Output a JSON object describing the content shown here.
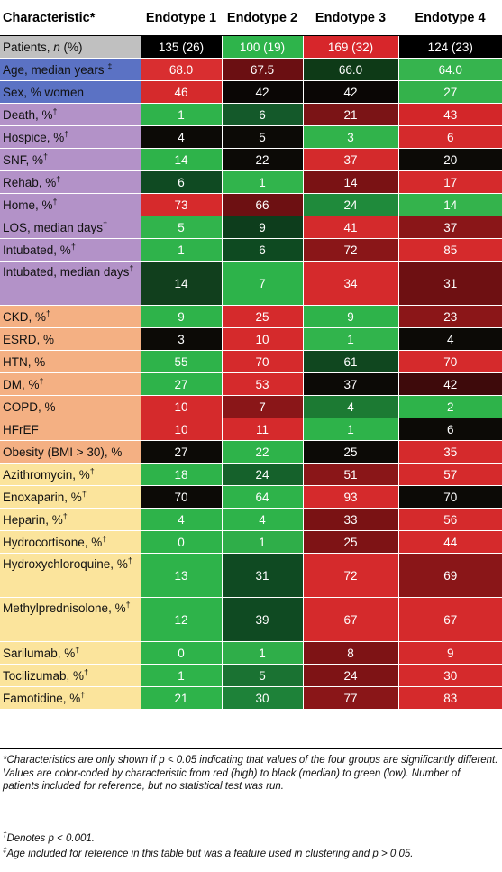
{
  "columns": [
    "Characteristic*",
    "Endotype 1",
    "Endotype 2",
    "Endotype 3",
    "Endotype 4"
  ],
  "groups": {
    "demographics": "#5b72c4",
    "outcomes": "#b392c8",
    "comorbidities": "#f4b083",
    "medications": "#fbe49c",
    "patients": "#c0c0c0"
  },
  "rows": [
    {
      "label": "Patients, ",
      "label_em": "n",
      "label_tail": " (%)",
      "mark": "",
      "group": "patients",
      "values": [
        "135 (26)",
        "100 (19)",
        "169 (32)",
        "124 (23)"
      ],
      "colors": [
        "#000000",
        "#2eb44b",
        "#d7262b",
        "#000000"
      ]
    },
    {
      "label": "Age, median years ",
      "mark": "‡",
      "group": "demographics",
      "values": [
        "68.0",
        "67.5",
        "66.0",
        "64.0"
      ],
      "colors": [
        "#d92e30",
        "#6b0f12",
        "#0e3a17",
        "#36b44e"
      ]
    },
    {
      "label": "Sex, % women",
      "mark": "",
      "group": "demographics",
      "values": [
        "46",
        "42",
        "42",
        "27"
      ],
      "colors": [
        "#d52a2c",
        "#0a0605",
        "#0a0605",
        "#34b24b"
      ]
    },
    {
      "label": "Death, %",
      "mark": "†",
      "group": "outcomes",
      "values": [
        "1",
        "6",
        "21",
        "43"
      ],
      "colors": [
        "#2fb34b",
        "#14592a",
        "#7b1416",
        "#d32629"
      ]
    },
    {
      "label": "Hospice, %",
      "mark": "†",
      "group": "outcomes",
      "values": [
        "4",
        "5",
        "3",
        "6"
      ],
      "colors": [
        "#0c0a06",
        "#0c0a06",
        "#31b34b",
        "#d52a2c"
      ]
    },
    {
      "label": "SNF, %",
      "mark": "†",
      "group": "outcomes",
      "values": [
        "14",
        "22",
        "37",
        "20"
      ],
      "colors": [
        "#2eb34a",
        "#0c0a06",
        "#d42a2c",
        "#0c0a06"
      ]
    },
    {
      "label": "Rehab, %",
      "mark": "†",
      "group": "outcomes",
      "values": [
        "6",
        "1",
        "14",
        "17"
      ],
      "colors": [
        "#0f4a22",
        "#31b44c",
        "#7a1214",
        "#d52a2c"
      ]
    },
    {
      "label": "Home, %",
      "mark": "†",
      "group": "outcomes",
      "values": [
        "73",
        "66",
        "24",
        "14"
      ],
      "colors": [
        "#d62a2c",
        "#6d1012",
        "#1f8a3b",
        "#34b34c"
      ]
    },
    {
      "label": "LOS, median days",
      "mark": "†",
      "group": "outcomes",
      "values": [
        "5",
        "9",
        "41",
        "37"
      ],
      "colors": [
        "#31b44c",
        "#0d3d1c",
        "#d42a2c",
        "#8a1618"
      ]
    },
    {
      "label": "Intubated, %",
      "mark": "†",
      "group": "outcomes",
      "values": [
        "1",
        "6",
        "72",
        "85"
      ],
      "colors": [
        "#2fb34b",
        "#0e4a21",
        "#8a1618",
        "#d52a2c"
      ]
    },
    {
      "label": "Intubated, median days",
      "mark": "†",
      "group": "outcomes",
      "tall": true,
      "values": [
        "14",
        "7",
        "34",
        "31"
      ],
      "colors": [
        "#113f1d",
        "#2db34a",
        "#d52a2c",
        "#6e1012"
      ]
    },
    {
      "label": "CKD, %",
      "mark": "†",
      "group": "comorbidities",
      "values": [
        "9",
        "25",
        "9",
        "23"
      ],
      "colors": [
        "#2eb34a",
        "#d52a2c",
        "#2eb34a",
        "#8b1618"
      ]
    },
    {
      "label": "ESRD, %",
      "mark": "",
      "group": "comorbidities",
      "values": [
        "3",
        "10",
        "1",
        "4"
      ],
      "colors": [
        "#0c0a06",
        "#d52a2c",
        "#31b44c",
        "#0c0a06"
      ]
    },
    {
      "label": "HTN, %",
      "mark": "",
      "group": "comorbidities",
      "values": [
        "55",
        "70",
        "61",
        "70"
      ],
      "colors": [
        "#2eb34a",
        "#d52a2c",
        "#10471f",
        "#d52a2c"
      ]
    },
    {
      "label": "DM, %",
      "mark": "†",
      "group": "comorbidities",
      "values": [
        "27",
        "53",
        "37",
        "42"
      ],
      "colors": [
        "#2eb34a",
        "#d52a2c",
        "#0c0a06",
        "#3e0a0b"
      ]
    },
    {
      "label": "COPD, %",
      "mark": "",
      "group": "comorbidities",
      "values": [
        "10",
        "7",
        "4",
        "2"
      ],
      "colors": [
        "#d52a2c",
        "#8a1618",
        "#1c7a33",
        "#2eb34a"
      ]
    },
    {
      "label": "HFrEF",
      "mark": "",
      "group": "comorbidities",
      "values": [
        "10",
        "11",
        "1",
        "6"
      ],
      "colors": [
        "#d52a2c",
        "#d52a2c",
        "#2eb34a",
        "#0c0a06"
      ]
    },
    {
      "label": "Obesity (BMI > 30), %",
      "mark": "",
      "group": "comorbidities",
      "values": [
        "27",
        "22",
        "25",
        "35"
      ],
      "colors": [
        "#0c0a06",
        "#2eb34a",
        "#0c0a06",
        "#d52a2c"
      ]
    },
    {
      "label": "Azithromycin, %",
      "mark": "†",
      "group": "medications",
      "values": [
        "18",
        "24",
        "51",
        "57"
      ],
      "colors": [
        "#2eb34a",
        "#15612b",
        "#8a1618",
        "#d52a2c"
      ]
    },
    {
      "label": "Enoxaparin, %",
      "mark": "†",
      "group": "medications",
      "values": [
        "70",
        "64",
        "93",
        "70"
      ],
      "colors": [
        "#0c0a06",
        "#2eb34a",
        "#d52a2c",
        "#0c0a06"
      ]
    },
    {
      "label": "Heparin, %",
      "mark": "†",
      "group": "medications",
      "values": [
        "4",
        "4",
        "33",
        "56"
      ],
      "colors": [
        "#2eb34a",
        "#2eb34a",
        "#7a1214",
        "#d52a2c"
      ]
    },
    {
      "label": "Hydrocortisone, %",
      "mark": "†",
      "group": "medications",
      "values": [
        "0",
        "1",
        "25",
        "44"
      ],
      "colors": [
        "#2eb34a",
        "#2fae49",
        "#7e1315",
        "#d52a2c"
      ]
    },
    {
      "label": "Hydroxychloroquine, %",
      "mark": "†",
      "group": "medications",
      "tall": true,
      "values": [
        "13",
        "31",
        "72",
        "69"
      ],
      "colors": [
        "#2eb34a",
        "#0f4a22",
        "#d52a2c",
        "#8a1618"
      ]
    },
    {
      "label": "Methylprednisolone, %",
      "mark": "†",
      "group": "medications",
      "tall": true,
      "values": [
        "12",
        "39",
        "67",
        "67"
      ],
      "colors": [
        "#2eb34a",
        "#0f4a22",
        "#d52a2c",
        "#d52a2c"
      ]
    },
    {
      "label": "Sarilumab, %",
      "mark": "†",
      "group": "medications",
      "values": [
        "0",
        "1",
        "8",
        "9"
      ],
      "colors": [
        "#2eb34a",
        "#2fae49",
        "#7e1315",
        "#d52a2c"
      ]
    },
    {
      "label": "Tocilizumab, %",
      "mark": "†",
      "group": "medications",
      "values": [
        "1",
        "5",
        "24",
        "30"
      ],
      "colors": [
        "#2eb34a",
        "#1a7232",
        "#7e1315",
        "#d52a2c"
      ]
    },
    {
      "label": "Famotidine, %",
      "mark": "†",
      "group": "medications",
      "values": [
        "21",
        "30",
        "77",
        "83"
      ],
      "colors": [
        "#2eb34a",
        "#1e8239",
        "#8a1618",
        "#d52a2c"
      ]
    }
  ],
  "footnotes": {
    "star_a": "*Characteristics are only shown if ",
    "star_p": "p",
    "star_b": " < 0.05 indicating that values of the four groups are significantly different. Values are color-coded by characteristic from red (high) to black (median) to green (low). Number of patients included for reference, but no statistical test was run.",
    "dagger_mark": "†",
    "dagger_a": "Denotes ",
    "dagger_p": "p",
    "dagger_b": " < 0.001.",
    "ddagger_mark": "‡",
    "ddagger_a": "Age included for reference in this table but was a feature used in clustering and ",
    "ddagger_p": "p",
    "ddagger_b": " > 0.05."
  }
}
